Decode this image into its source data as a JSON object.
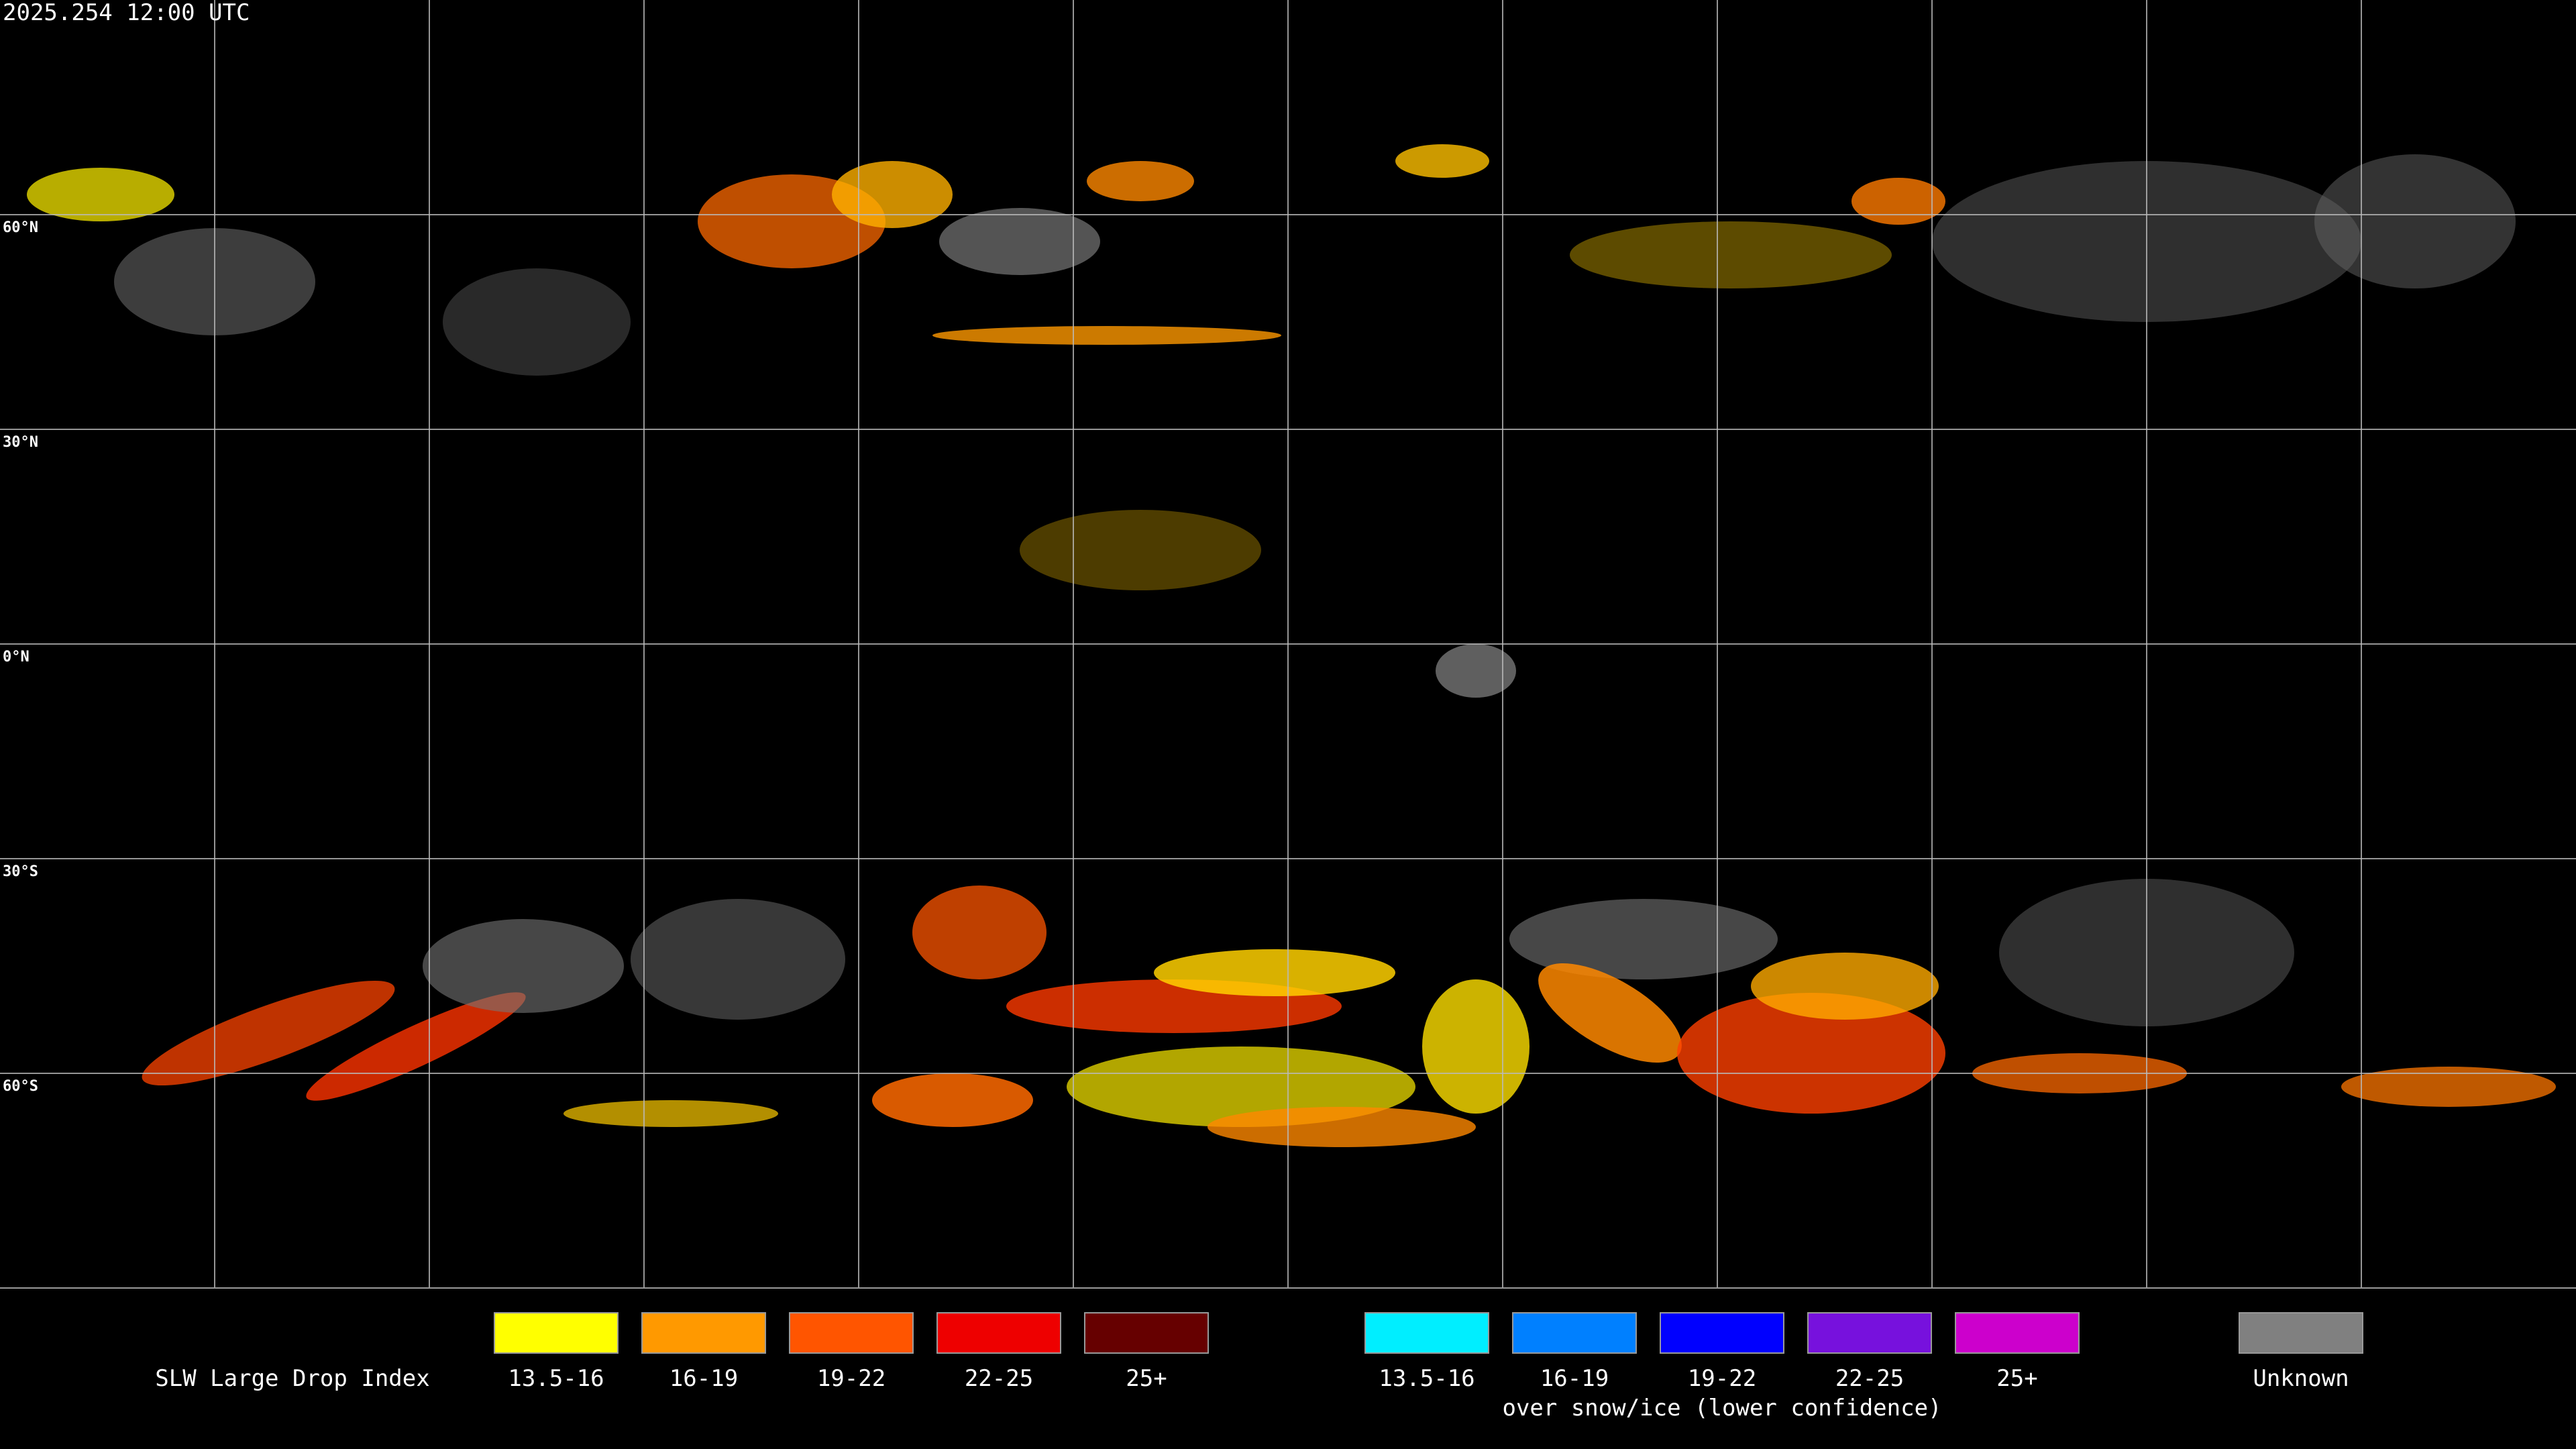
{
  "header": {
    "timestamp": "2025.254 12:00 UTC"
  },
  "map": {
    "lat_labels": [
      "60°N",
      "30°N",
      "0°N",
      "30°S",
      "60°S"
    ]
  },
  "legend": {
    "title": "SLW Large Drop Index",
    "groups": [
      {
        "entries": [
          {
            "label": "13.5-16",
            "color": "#ffff00"
          },
          {
            "label": "16-19",
            "color": "#ff9900"
          },
          {
            "label": "19-22",
            "color": "#ff5500"
          },
          {
            "label": "22-25",
            "color": "#ee0000"
          },
          {
            "label": "25+",
            "color": "#660000"
          }
        ]
      },
      {
        "entries": [
          {
            "label": "13.5-16",
            "color": "#00eeff"
          },
          {
            "label": "16-19",
            "color": "#0080ff"
          },
          {
            "label": "19-22",
            "color": "#0000ff"
          },
          {
            "label": "22-25",
            "color": "#7711dd"
          },
          {
            "label": "25+",
            "color": "#cc00cc"
          }
        ],
        "note": "over snow/ice (lower confidence)"
      },
      {
        "entries": [
          {
            "label": "Unknown",
            "color": "#808080"
          }
        ]
      }
    ]
  }
}
